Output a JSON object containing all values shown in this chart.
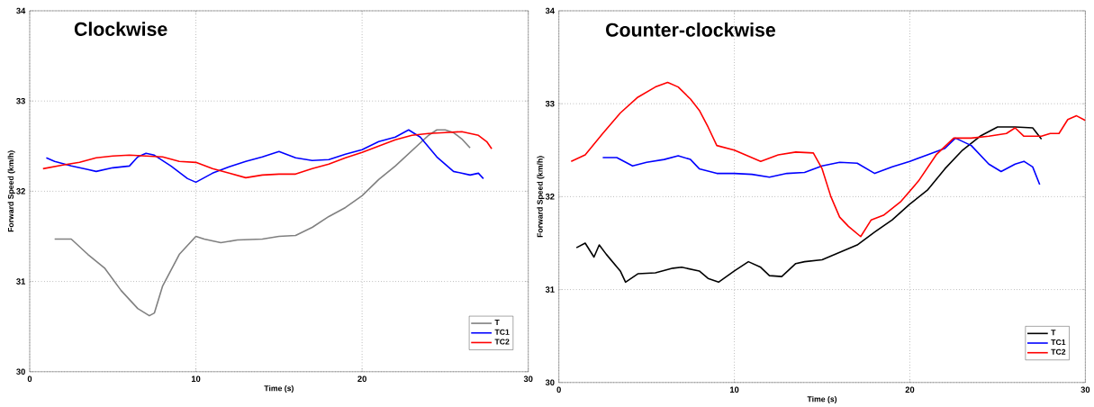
{
  "chart_data": [
    {
      "type": "line",
      "title": "Clockwise",
      "xlabel": "Time (s)",
      "ylabel": "Forward Speed (km/h)",
      "xlim": [
        0,
        30
      ],
      "ylim": [
        30,
        34
      ],
      "xticks": [
        0,
        10,
        20,
        30
      ],
      "yticks": [
        30,
        31,
        32,
        33,
        34
      ],
      "grid": true,
      "legend": "bottom right",
      "series": [
        {
          "name": "T",
          "color": "#808080",
          "x": [
            1.5,
            2.5,
            3.5,
            4.5,
            5.5,
            6.5,
            7.2,
            7.5,
            8,
            9,
            10,
            10.5,
            11.5,
            12.5,
            14,
            15,
            16,
            17,
            18,
            19,
            20,
            21,
            22,
            23,
            24,
            24.5,
            25,
            25.5,
            26,
            26.5
          ],
          "values": [
            31.47,
            31.47,
            31.3,
            31.15,
            30.9,
            30.7,
            30.62,
            30.65,
            30.95,
            31.3,
            31.5,
            31.47,
            31.43,
            31.46,
            31.47,
            31.5,
            31.51,
            31.6,
            31.72,
            31.82,
            31.95,
            32.13,
            32.28,
            32.45,
            32.62,
            32.68,
            32.68,
            32.65,
            32.58,
            32.48
          ]
        },
        {
          "name": "TC1",
          "color": "#0000ff",
          "x": [
            1,
            1.5,
            2.5,
            3.5,
            4,
            5,
            6,
            6.5,
            7,
            7.5,
            8.5,
            9.5,
            10,
            11,
            12,
            13,
            14,
            15,
            16,
            17,
            18,
            19,
            20,
            21,
            22,
            22.8,
            23.5,
            24.5,
            25.5,
            26.5,
            27,
            27.3
          ],
          "values": [
            32.37,
            32.33,
            32.28,
            32.24,
            32.22,
            32.26,
            32.28,
            32.38,
            32.42,
            32.4,
            32.28,
            32.14,
            32.1,
            32.2,
            32.27,
            32.33,
            32.38,
            32.44,
            32.37,
            32.34,
            32.35,
            32.41,
            32.46,
            32.55,
            32.6,
            32.68,
            32.6,
            32.38,
            32.22,
            32.18,
            32.2,
            32.14
          ]
        },
        {
          "name": "TC2",
          "color": "#ff0000",
          "x": [
            0.8,
            2,
            3,
            4,
            5,
            6,
            7,
            8,
            9,
            10,
            11,
            12,
            13,
            14,
            15,
            16,
            17,
            18,
            19,
            20,
            21,
            22,
            23,
            24,
            25,
            26,
            27,
            27.5,
            27.8
          ],
          "values": [
            32.25,
            32.29,
            32.32,
            32.37,
            32.39,
            32.4,
            32.39,
            32.38,
            32.33,
            32.32,
            32.25,
            32.2,
            32.15,
            32.18,
            32.19,
            32.19,
            32.25,
            32.3,
            32.37,
            32.43,
            32.5,
            32.57,
            32.62,
            32.64,
            32.65,
            32.66,
            32.62,
            32.55,
            32.47
          ]
        }
      ]
    },
    {
      "type": "line",
      "title": "Counter-clockwise",
      "xlabel": "Time (s)",
      "ylabel": "Forward Speed (km/h)",
      "xlim": [
        0,
        30
      ],
      "ylim": [
        30,
        34
      ],
      "xticks": [
        0,
        10,
        20,
        30
      ],
      "yticks": [
        30,
        31,
        32,
        33,
        34
      ],
      "grid": true,
      "legend": "bottom right",
      "series": [
        {
          "name": "T",
          "color": "#000000",
          "x": [
            1,
            1.5,
            2,
            2.3,
            2.7,
            3.5,
            3.8,
            4.5,
            5.5,
            6.5,
            7,
            8,
            8.5,
            9.1,
            10,
            10.8,
            11.5,
            12,
            12.7,
            13.5,
            14,
            15,
            16,
            17,
            18,
            19,
            20,
            21,
            22,
            23,
            24,
            25,
            26,
            27,
            27.5
          ],
          "values": [
            31.45,
            31.5,
            31.35,
            31.48,
            31.38,
            31.2,
            31.08,
            31.17,
            31.18,
            31.23,
            31.24,
            31.2,
            31.12,
            31.08,
            31.2,
            31.3,
            31.24,
            31.15,
            31.14,
            31.28,
            31.3,
            31.32,
            31.4,
            31.48,
            31.62,
            31.75,
            31.92,
            32.07,
            32.3,
            32.5,
            32.65,
            32.75,
            32.75,
            32.74,
            32.62
          ]
        },
        {
          "name": "TC1",
          "color": "#0000ff",
          "x": [
            2.5,
            3.3,
            4.2,
            5,
            6,
            6.8,
            7.5,
            8,
            9,
            10,
            11,
            12,
            13,
            14,
            15,
            16,
            17,
            18,
            19,
            20,
            21,
            22,
            22.6,
            23.5,
            24.5,
            25.2,
            26,
            26.5,
            27,
            27.4
          ],
          "values": [
            32.42,
            32.42,
            32.33,
            32.37,
            32.4,
            32.44,
            32.4,
            32.3,
            32.25,
            32.25,
            32.24,
            32.21,
            32.25,
            32.26,
            32.33,
            32.37,
            32.36,
            32.25,
            32.32,
            32.38,
            32.45,
            32.52,
            32.63,
            32.55,
            32.35,
            32.27,
            32.35,
            32.38,
            32.32,
            32.13
          ]
        },
        {
          "name": "TC2",
          "color": "#ff0000",
          "x": [
            0.7,
            1.5,
            2.5,
            3.5,
            4.5,
            5.5,
            6.2,
            6.8,
            7.5,
            8,
            8.5,
            9,
            10,
            11,
            11.5,
            12.5,
            13.5,
            14.5,
            15,
            15.5,
            16,
            16.5,
            17.2,
            17.8,
            18.5,
            19.5,
            20.5,
            21.5,
            22.5,
            23.5,
            24.5,
            25.5,
            26,
            26.5,
            27.5,
            28,
            28.5,
            29,
            29.5,
            30
          ],
          "values": [
            32.38,
            32.45,
            32.68,
            32.9,
            33.07,
            33.18,
            33.23,
            33.18,
            33.05,
            32.93,
            32.75,
            32.55,
            32.5,
            32.42,
            32.38,
            32.45,
            32.48,
            32.47,
            32.3,
            32.0,
            31.78,
            31.68,
            31.57,
            31.75,
            31.8,
            31.95,
            32.17,
            32.45,
            32.63,
            32.63,
            32.65,
            32.68,
            32.74,
            32.65,
            32.65,
            32.68,
            32.68,
            32.83,
            32.87,
            32.82
          ]
        }
      ]
    }
  ]
}
